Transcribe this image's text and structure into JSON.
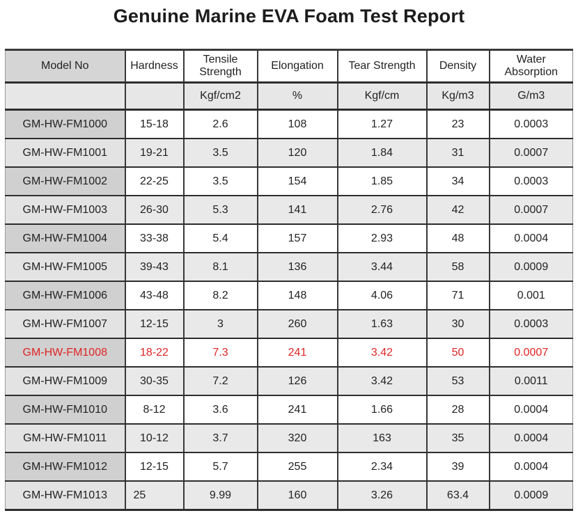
{
  "title": "Genuine Marine EVA Foam Test Report",
  "table": {
    "columns": [
      "Model No",
      "Hardness",
      "Tensile Strength",
      "Elongation",
      "Tear Strength",
      "Density",
      "Water Absorption"
    ],
    "units": [
      "",
      "",
      "Kgf/cm2",
      "%",
      "Kgf/cm",
      "Kg/m3",
      "G/m3"
    ],
    "highlight_color": "#e02424",
    "rows": [
      {
        "model": "GM-HW-FM1000",
        "hardness": "15-18",
        "tensile": "2.6",
        "elongation": "108",
        "tear": "1.27",
        "density": "23",
        "water": "0.0003",
        "highlight": false
      },
      {
        "model": "GM-HW-FM1001",
        "hardness": "19-21",
        "tensile": "3.5",
        "elongation": "120",
        "tear": "1.84",
        "density": "31",
        "water": "0.0007",
        "highlight": false
      },
      {
        "model": "GM-HW-FM1002",
        "hardness": "22-25",
        "tensile": "3.5",
        "elongation": "154",
        "tear": "1.85",
        "density": "34",
        "water": "0.0003",
        "highlight": false
      },
      {
        "model": "GM-HW-FM1003",
        "hardness": "26-30",
        "tensile": "5.3",
        "elongation": "141",
        "tear": "2.76",
        "density": "42",
        "water": "0.0007",
        "highlight": false
      },
      {
        "model": "GM-HW-FM1004",
        "hardness": "33-38",
        "tensile": "5.4",
        "elongation": "157",
        "tear": "2.93",
        "density": "48",
        "water": "0.0004",
        "highlight": false
      },
      {
        "model": "GM-HW-FM1005",
        "hardness": "39-43",
        "tensile": "8.1",
        "elongation": "136",
        "tear": "3.44",
        "density": "58",
        "water": "0.0009",
        "highlight": false
      },
      {
        "model": "GM-HW-FM1006",
        "hardness": "43-48",
        "tensile": "8.2",
        "elongation": "148",
        "tear": "4.06",
        "density": "71",
        "water": "0.001",
        "highlight": false
      },
      {
        "model": "GM-HW-FM1007",
        "hardness": "12-15",
        "tensile": "3",
        "elongation": "260",
        "tear": "1.63",
        "density": "30",
        "water": "0.0003",
        "highlight": false
      },
      {
        "model": "GM-HW-FM1008",
        "hardness": "18-22",
        "tensile": "7.3",
        "elongation": "241",
        "tear": "3.42",
        "density": "50",
        "water": "0.0007",
        "highlight": true
      },
      {
        "model": "GM-HW-FM1009",
        "hardness": "30-35",
        "tensile": "7.2",
        "elongation": "126",
        "tear": "3.42",
        "density": "53",
        "water": "0.0011",
        "highlight": false
      },
      {
        "model": "GM-HW-FM1010",
        "hardness": "8-12",
        "tensile": "3.6",
        "elongation": "241",
        "tear": "1.66",
        "density": "28",
        "water": "0.0004",
        "highlight": false
      },
      {
        "model": "GM-HW-FM1011",
        "hardness": "10-12",
        "tensile": "3.7",
        "elongation": "320",
        "tear": "163",
        "density": "35",
        "water": "0.0004",
        "highlight": false
      },
      {
        "model": "GM-HW-FM1012",
        "hardness": "12-15",
        "tensile": "5.7",
        "elongation": "255",
        "tear": "2.34",
        "density": "39",
        "water": "0.0004",
        "highlight": false
      },
      {
        "model": "GM-HW-FM1013",
        "hardness": "25",
        "tensile": "9.99",
        "elongation": "160",
        "tear": "3.26",
        "density": "63.4",
        "water": "0.0009",
        "highlight": false
      }
    ]
  }
}
